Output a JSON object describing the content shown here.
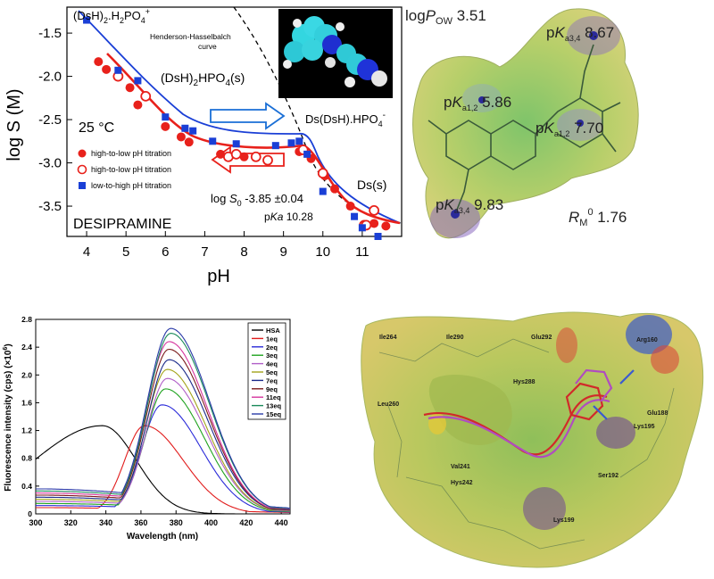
{
  "chart_data": [
    {
      "type": "scatter",
      "title": "DESIPRAMINE",
      "xlabel": "pH",
      "ylabel": "log S (M)",
      "xlim": [
        3.5,
        12.0
      ],
      "ylim": [
        -3.85,
        -1.2
      ],
      "xticks": [
        "4",
        "5",
        "6",
        "7",
        "8",
        "9",
        "10",
        "11"
      ],
      "yticks": [
        "-1.5",
        "-2.0",
        "-2.5",
        "-3.0",
        "-3.5"
      ],
      "temperature": "25 °C",
      "legend": "bottom-left",
      "series": [
        {
          "name": "high-to-low pH titration",
          "marker": "filled-circle",
          "color": "#e8211b",
          "points": [
            [
              4.3,
              -1.83
            ],
            [
              4.5,
              -1.92
            ],
            [
              5.1,
              -2.13
            ],
            [
              5.3,
              -2.33
            ],
            [
              6.0,
              -2.58
            ],
            [
              6.4,
              -2.7
            ],
            [
              6.6,
              -2.76
            ],
            [
              7.4,
              -2.9
            ],
            [
              8.0,
              -2.93
            ],
            [
              9.4,
              -2.87
            ],
            [
              9.7,
              -2.95
            ],
            [
              10.05,
              -3.15
            ],
            [
              10.3,
              -3.3
            ],
            [
              10.7,
              -3.5
            ],
            [
              11.3,
              -3.7
            ],
            [
              11.6,
              -3.73
            ]
          ]
        },
        {
          "name": "high-to-low pH titration",
          "marker": "open-circle",
          "color": "#e8211b",
          "points": [
            [
              4.8,
              -2.0
            ],
            [
              5.5,
              -2.23
            ],
            [
              7.6,
              -2.93
            ],
            [
              7.8,
              -2.9
            ],
            [
              8.3,
              -2.93
            ],
            [
              8.6,
              -2.97
            ],
            [
              9.5,
              -2.85
            ],
            [
              10.0,
              -3.12
            ],
            [
              11.05,
              -3.72
            ],
            [
              11.3,
              -3.55
            ],
            [
              11.1,
              -3.72
            ]
          ]
        },
        {
          "name": "low-to-high pH titration",
          "marker": "square",
          "color": "#1a3fd6",
          "points": [
            [
              4.0,
              -1.35
            ],
            [
              4.8,
              -1.93
            ],
            [
              5.3,
              -2.05
            ],
            [
              6.0,
              -2.47
            ],
            [
              6.5,
              -2.6
            ],
            [
              6.7,
              -2.63
            ],
            [
              7.2,
              -2.75
            ],
            [
              7.8,
              -2.78
            ],
            [
              8.8,
              -2.8
            ],
            [
              9.2,
              -2.77
            ],
            [
              9.4,
              -2.75
            ],
            [
              9.6,
              -2.9
            ],
            [
              10.0,
              -3.33
            ],
            [
              10.8,
              -3.62
            ],
            [
              11.0,
              -3.75
            ],
            [
              11.4,
              -3.85
            ]
          ]
        }
      ],
      "annotations": {
        "salt_top": "(DsH)",
        "salt_top_sub": "2",
        "salt_top_rest": ".H",
        "salt_top_sub2": "2",
        "salt_top_rest2": "PO",
        "salt_top_sub3": "4",
        "salt_top_sup": "+",
        "salt_mid": "(DsH)",
        "salt_mid_sub": "2",
        "salt_mid_rest": "HPO",
        "salt_mid_sub2": "4",
        "salt_mid_rest2": "(s)",
        "salt_right": "Ds(DsH).HPO",
        "salt_right_sub": "4",
        "salt_right_sup": "-",
        "solid": "Ds(s)",
        "hh_curve": "Henderson-Hasselbalch",
        "hh_curve2": "curve",
        "logS0_pre": "log ",
        "logS0_sym": "S",
        "logS0_sub": "0",
        "logS0_val": " -3.85 ±0.04",
        "pka_pre": "p",
        "pka_sym": "Ka",
        "pka_val": " 10.28"
      }
    },
    {
      "type": "line",
      "title": "",
      "xlabel": "Wavelength (nm)",
      "ylabel_pre": "Fluorescence intensity (cps) (×10",
      "ylabel_sup": "6",
      "ylabel_post": ")",
      "xlim": [
        300,
        445
      ],
      "ylim": [
        0,
        2.8
      ],
      "xticks": [
        "300",
        "320",
        "340",
        "360",
        "380",
        "400",
        "420",
        "440"
      ],
      "yticks": [
        "0",
        "0.4",
        "0.8",
        "1.2",
        "1.6",
        "2.0",
        "2.4",
        "2.8"
      ],
      "legend": "top-right",
      "series": [
        {
          "name": "HSA",
          "color": "#000000",
          "peak": 1.27,
          "peak_x": 338
        },
        {
          "name": "1eq",
          "color": "#e11c1c",
          "peak": 1.27,
          "peak_x": 362
        },
        {
          "name": "2eq",
          "color": "#2b2bd9",
          "peak": 1.57,
          "peak_x": 372
        },
        {
          "name": "3eq",
          "color": "#1fa31f",
          "peak": 1.8,
          "peak_x": 374
        },
        {
          "name": "4eq",
          "color": "#b05fc8",
          "peak": 1.95,
          "peak_x": 375
        },
        {
          "name": "5eq",
          "color": "#a3a31a",
          "peak": 2.08,
          "peak_x": 375
        },
        {
          "name": "7eq",
          "color": "#1b2a8a",
          "peak": 2.22,
          "peak_x": 376
        },
        {
          "name": "9eq",
          "color": "#7a1a1a",
          "peak": 2.37,
          "peak_x": 376
        },
        {
          "name": "11eq",
          "color": "#d6369e",
          "peak": 2.48,
          "peak_x": 376
        },
        {
          "name": "13eq",
          "color": "#1a8a5a",
          "peak": 2.6,
          "peak_x": 377
        },
        {
          "name": "15eq",
          "color": "#2a3aa8",
          "peak": 2.67,
          "peak_x": 377
        }
      ]
    }
  ],
  "esp_molecule": {
    "logpow_pre": "log",
    "logpow_sym": "P",
    "logpow_sub": "OW",
    "logpow_val": " 3.51",
    "pka_labels": [
      {
        "pre": "p",
        "sym": "K",
        "sub": "a3,4",
        "val": " 8.67"
      },
      {
        "pre": "p",
        "sym": "K",
        "sub": "a1,2",
        "val": " 5.86"
      },
      {
        "pre": "p",
        "sym": "K",
        "sub": "a1,2",
        "val": " 7.70"
      },
      {
        "pre": "p",
        "sym": "K",
        "sub": "a3,4",
        "val": " 9.83"
      }
    ],
    "rm_sym": "R",
    "rm_sub": "M",
    "rm_sup": "0",
    "rm_val": " 1.76"
  },
  "binding_site": {
    "residues": [
      "Ile264",
      "Ile290",
      "Glu292",
      "Arg160",
      "Hys288",
      "Leu260",
      "Glu188",
      "Lys195",
      "Val241",
      "Hys242",
      "Ser192",
      "Lys199"
    ]
  }
}
